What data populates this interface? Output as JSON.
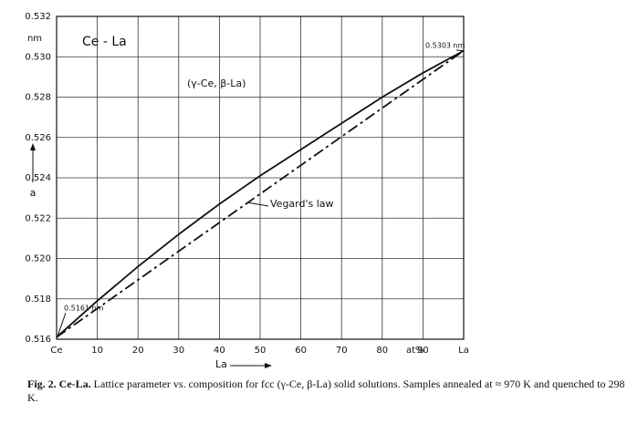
{
  "chart_data": {
    "type": "line",
    "title": "Ce - La",
    "subtitle": "(γ-Ce, β-La)",
    "x_label": "La",
    "x_unit": "at%",
    "y_label": "a",
    "y_unit": "nm",
    "xlim": [
      0,
      100
    ],
    "ylim": [
      0.516,
      0.532
    ],
    "xticks": [
      {
        "value": 0,
        "label": "Ce"
      },
      10,
      20,
      30,
      40,
      50,
      60,
      70,
      80,
      90,
      {
        "value": 100,
        "label": "La"
      }
    ],
    "yticks": [
      0.516,
      0.518,
      {
        "value": 0.52,
        "label": "0.520"
      },
      0.522,
      0.524,
      0.526,
      0.528,
      {
        "value": 0.53,
        "label": "0.530"
      },
      0.532
    ],
    "grid": true,
    "series": [
      {
        "color": "#111111",
        "dash": "none",
        "x": [
          0,
          10,
          20,
          30,
          40,
          50,
          60,
          70,
          80,
          90,
          100
        ],
        "values": [
          0.5161,
          0.5179,
          0.5196,
          0.5212,
          0.5227,
          0.5241,
          0.5254,
          0.5267,
          0.528,
          0.5292,
          0.5303
        ]
      },
      {
        "name": "Vegard's law",
        "color": "#111111",
        "dash": "12 4 3 4",
        "x": [
          0,
          100
        ],
        "values": [
          0.5161,
          0.5303
        ]
      }
    ],
    "annotations": [
      {
        "text": "0.5161 nm"
      },
      {
        "text": "0.5303 nm"
      }
    ]
  },
  "caption": {
    "bold": "Fig. 2. Ce-La.",
    "text": "Lattice parameter vs. composition for fcc (γ-Ce, β-La) solid solutions. Samples annealed at ≈ 970 K and quenched to 298 K."
  }
}
